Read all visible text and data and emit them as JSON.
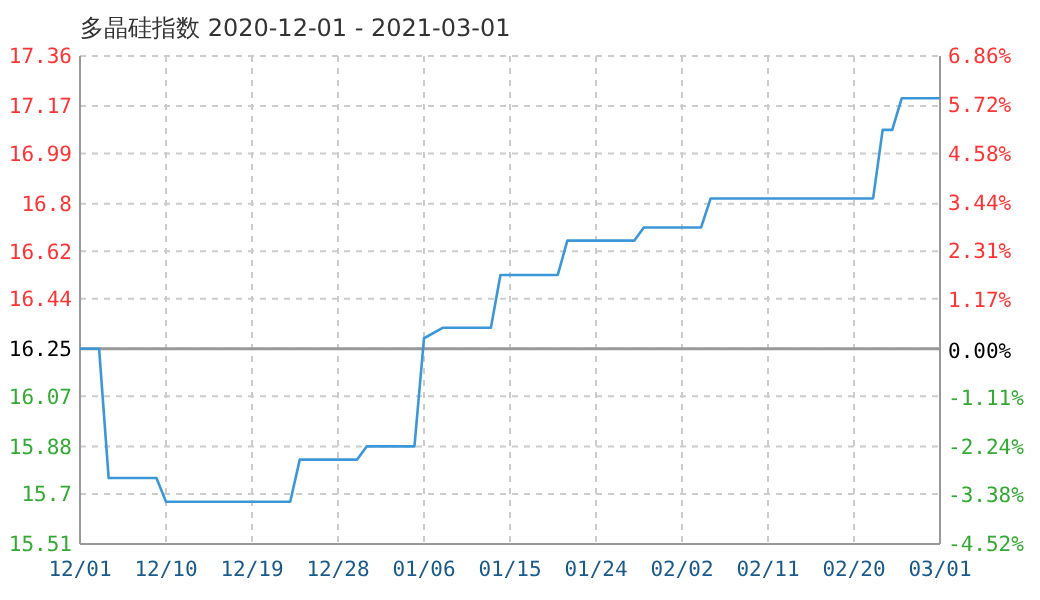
{
  "chart_data": {
    "type": "line",
    "title": "多晶硅指数 2020-12-01 - 2021-03-01",
    "x": [
      "2020-12-01",
      "2020-12-03",
      "2020-12-04",
      "2020-12-09",
      "2020-12-10",
      "2020-12-23",
      "2020-12-24",
      "2020-12-30",
      "2020-12-31",
      "2021-01-05",
      "2021-01-06",
      "2021-01-08",
      "2021-01-13",
      "2021-01-14",
      "2021-01-20",
      "2021-01-21",
      "2021-01-28",
      "2021-01-29",
      "2021-02-04",
      "2021-02-05",
      "2021-02-22",
      "2021-02-23",
      "2021-02-24",
      "2021-02-25",
      "2021-03-01"
    ],
    "series": [
      {
        "color": "#3b97d8",
        "values": [
          16.25,
          16.25,
          15.76,
          15.76,
          15.67,
          15.67,
          15.83,
          15.83,
          15.88,
          15.88,
          16.29,
          16.33,
          16.33,
          16.53,
          16.53,
          16.66,
          16.66,
          16.71,
          16.71,
          16.82,
          16.82,
          17.08,
          17.08,
          17.2,
          17.2
        ]
      }
    ],
    "xlim": [
      "2020-12-01",
      "2021-03-01"
    ],
    "xticks": [
      {
        "value": "2020-12-01",
        "label": "12/01"
      },
      {
        "value": "2020-12-10",
        "label": "12/10"
      },
      {
        "value": "2020-12-19",
        "label": "12/19"
      },
      {
        "value": "2020-12-28",
        "label": "12/28"
      },
      {
        "value": "2021-01-06",
        "label": "01/06"
      },
      {
        "value": "2021-01-15",
        "label": "01/15"
      },
      {
        "value": "2021-01-24",
        "label": "01/24"
      },
      {
        "value": "2021-02-02",
        "label": "02/02"
      },
      {
        "value": "2021-02-11",
        "label": "02/11"
      },
      {
        "value": "2021-02-20",
        "label": "02/20"
      },
      {
        "value": "2021-03-01",
        "label": "03/01"
      }
    ],
    "ylim": [
      15.51,
      17.36
    ],
    "yticks": [
      15.51,
      15.7,
      15.88,
      16.07,
      16.25,
      16.44,
      16.62,
      16.8,
      16.99,
      17.17,
      17.36
    ],
    "y2lim": [
      -4.52,
      6.86
    ],
    "y2ticks": [
      {
        "value": -4.52,
        "label": "-4.52%"
      },
      {
        "value": -3.38,
        "label": "-3.38%"
      },
      {
        "value": -2.24,
        "label": "-2.24%"
      },
      {
        "value": -1.11,
        "label": "-1.11%"
      },
      {
        "value": 0,
        "label": "0.00%"
      },
      {
        "value": 1.17,
        "label": "1.17%"
      },
      {
        "value": 2.31,
        "label": "2.31%"
      },
      {
        "value": 3.44,
        "label": "3.44%"
      },
      {
        "value": 4.58,
        "label": "4.58%"
      },
      {
        "value": 5.72,
        "label": "5.72%"
      },
      {
        "value": 6.86,
        "label": "6.86%"
      }
    ],
    "ref_lines": [
      {
        "axis": "y",
        "value": 16.25,
        "color": "#999999"
      }
    ],
    "grid": true,
    "line_style": "solid",
    "marker": "none"
  }
}
